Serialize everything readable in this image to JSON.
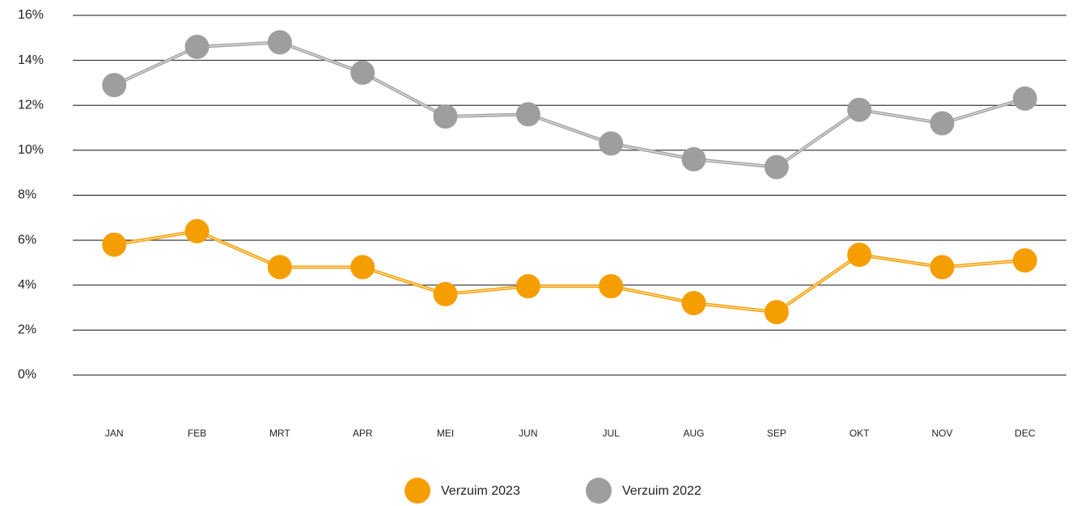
{
  "chart_data": {
    "type": "line",
    "categories": [
      "JAN",
      "FEB",
      "MRT",
      "APR",
      "MEI",
      "JUN",
      "JUL",
      "AUG",
      "SEP",
      "OKT",
      "NOV",
      "DEC"
    ],
    "series": [
      {
        "name": "Verzuim 2023",
        "color": "#f59e00",
        "values": [
          5.8,
          6.4,
          4.8,
          4.8,
          3.6,
          3.95,
          3.95,
          3.2,
          2.8,
          5.35,
          4.8,
          5.1
        ]
      },
      {
        "name": "Verzuim 2022",
        "color": "#9e9e9e",
        "values": [
          12.9,
          14.6,
          14.8,
          13.45,
          11.5,
          11.6,
          10.3,
          9.6,
          9.25,
          11.8,
          11.2,
          12.3
        ]
      }
    ],
    "ylim": [
      0,
      16
    ],
    "yticks": [
      {
        "value": 0,
        "label": "0%"
      },
      {
        "value": 2,
        "label": "2%"
      },
      {
        "value": 4,
        "label": "4%"
      },
      {
        "value": 6,
        "label": "6%"
      },
      {
        "value": 8,
        "label": "8%"
      },
      {
        "value": 10,
        "label": "10%"
      },
      {
        "value": 12,
        "label": "12%"
      },
      {
        "value": 14,
        "label": "14%"
      },
      {
        "value": 16,
        "label": "16%"
      }
    ],
    "grid": true,
    "legend": "bottom"
  }
}
